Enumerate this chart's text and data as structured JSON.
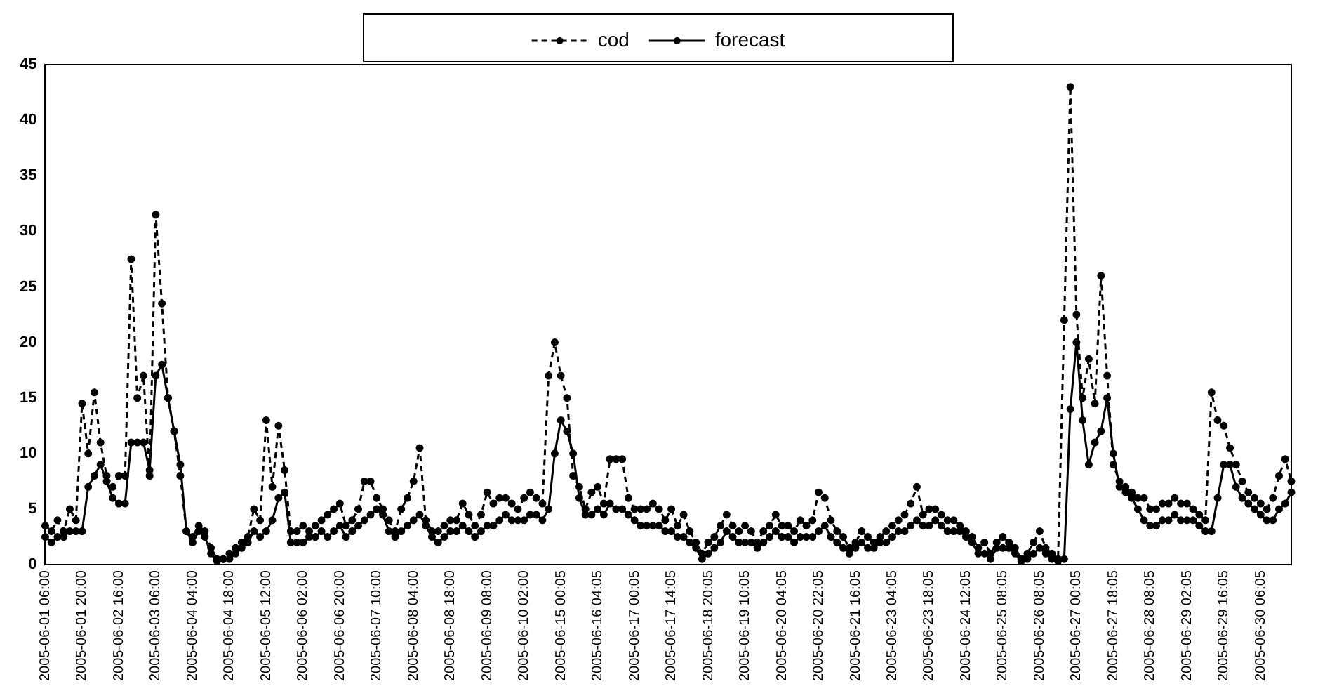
{
  "chart_data": {
    "type": "line",
    "marker": "circle",
    "legend": "top",
    "grid": false,
    "categories": [
      "2005-06-01 06:00",
      null,
      null,
      null,
      null,
      null,
      "2005-06-01 20:00",
      null,
      null,
      null,
      null,
      null,
      "2005-06-02 16:00",
      null,
      null,
      null,
      null,
      null,
      "2005-06-03 06:00",
      null,
      null,
      null,
      null,
      null,
      "2005-06-04 04:00",
      null,
      null,
      null,
      null,
      null,
      "2005-06-04 18:00",
      null,
      null,
      null,
      null,
      null,
      "2005-06-05 12:00",
      null,
      null,
      null,
      null,
      null,
      "2005-06-06 02:00",
      null,
      null,
      null,
      null,
      null,
      "2005-06-06 20:00",
      null,
      null,
      null,
      null,
      null,
      "2005-06-07 10:00",
      null,
      null,
      null,
      null,
      null,
      "2005-06-08 04:00",
      null,
      null,
      null,
      null,
      null,
      "2005-06-08 18:00",
      null,
      null,
      null,
      null,
      null,
      "2005-06-09 08:00",
      null,
      null,
      null,
      null,
      null,
      "2005-06-10 02:00",
      null,
      null,
      null,
      null,
      null,
      "2005-06-15 00:05",
      null,
      null,
      null,
      null,
      null,
      "2005-06-16 04:05",
      null,
      null,
      null,
      null,
      null,
      "2005-06-17 00:05",
      null,
      null,
      null,
      null,
      null,
      "2005-06-17 14:05",
      null,
      null,
      null,
      null,
      null,
      "2005-06-18 20:05",
      null,
      null,
      null,
      null,
      null,
      "2005-06-19 10:05",
      null,
      null,
      null,
      null,
      null,
      "2005-06-20 04:05",
      null,
      null,
      null,
      null,
      null,
      "2005-06-20 22:05",
      null,
      null,
      null,
      null,
      null,
      "2005-06-21 16:05",
      null,
      null,
      null,
      null,
      null,
      "2005-06-23 04:05",
      null,
      null,
      null,
      null,
      null,
      "2005-06-23 18:05",
      null,
      null,
      null,
      null,
      null,
      "2005-06-24 12:05",
      null,
      null,
      null,
      null,
      null,
      "2005-06-25 08:05",
      null,
      null,
      null,
      null,
      null,
      "2005-06-26 08:05",
      null,
      null,
      null,
      null,
      null,
      "2005-06-27 00:05",
      null,
      null,
      null,
      null,
      null,
      "2005-06-27 18:05",
      null,
      null,
      null,
      null,
      null,
      "2005-06-28 08:05",
      null,
      null,
      null,
      null,
      null,
      "2005-06-29 02:05",
      null,
      null,
      null,
      null,
      null,
      "2005-06-29 16:05",
      null,
      null,
      null,
      null,
      null,
      "2005-06-30 06:05",
      null,
      null,
      null,
      null,
      null
    ],
    "series": [
      {
        "name": "cod",
        "color": "#000000",
        "line_style": "dashed",
        "values": [
          3.5,
          3,
          4,
          3,
          5,
          4,
          14.5,
          10,
          15.5,
          11,
          8,
          7,
          8,
          8,
          27.5,
          15,
          17,
          8,
          31.5,
          23.5,
          15,
          12,
          8,
          3,
          2.5,
          3.5,
          3,
          1.5,
          0.5,
          0.5,
          1,
          1.5,
          2,
          2.5,
          5,
          4,
          13,
          7,
          12.5,
          8.5,
          3,
          3,
          3.5,
          3,
          3.5,
          4,
          4.5,
          5,
          5.5,
          3.5,
          4,
          5,
          7.5,
          7.5,
          6,
          5,
          4,
          3,
          5,
          6,
          7.5,
          10.5,
          4,
          3,
          3,
          3.5,
          4,
          4,
          5.5,
          4.5,
          3.5,
          4.5,
          6.5,
          5.5,
          6,
          6,
          5.5,
          5,
          6,
          6.5,
          6,
          5.5,
          17,
          20,
          17,
          15,
          8,
          7,
          5,
          6.5,
          7,
          5.5,
          9.5,
          9.5,
          9.5,
          6,
          5,
          5,
          5,
          5.5,
          5,
          4,
          5,
          3.5,
          4.5,
          3,
          2,
          1,
          2,
          2.5,
          3.5,
          4.5,
          3.5,
          3,
          3.5,
          3,
          2,
          3,
          3.5,
          4.5,
          3.5,
          3.5,
          3,
          4,
          3.5,
          4,
          6.5,
          6,
          4,
          3,
          2.5,
          1.5,
          2,
          3,
          2.5,
          2,
          2.5,
          3,
          3.5,
          4,
          4.5,
          5.5,
          7,
          4.5,
          5,
          5,
          4.5,
          4,
          4,
          3.5,
          3,
          2.5,
          1.5,
          2,
          1,
          2,
          2.5,
          2,
          1.5,
          0.5,
          1,
          2,
          3,
          1.5,
          1,
          0.5,
          22,
          43,
          22.5,
          15,
          18.5,
          14.5,
          26,
          17,
          9,
          7.5,
          7,
          6.5,
          6,
          6,
          5,
          5,
          5.5,
          5.5,
          6,
          5.5,
          5.5,
          5,
          4.5,
          4,
          15.5,
          13,
          12.5,
          10.5,
          9,
          7.5,
          6.5,
          6,
          5.5,
          5,
          6,
          8,
          9.5,
          7.5
        ]
      },
      {
        "name": "forecast",
        "color": "#000000",
        "line_style": "solid",
        "values": [
          2.5,
          2,
          2.5,
          2.5,
          3,
          3,
          3,
          7,
          8,
          9,
          7.5,
          6,
          5.5,
          5.5,
          11,
          11,
          11,
          8.5,
          17,
          18,
          15,
          12,
          9,
          3,
          2,
          3,
          2.5,
          1,
          0.3,
          0.5,
          0.5,
          1,
          1.5,
          2,
          3,
          2.5,
          3,
          4,
          6,
          6.5,
          2,
          2,
          2,
          2.5,
          2.5,
          3,
          2.5,
          3,
          3.5,
          2.5,
          3,
          3.5,
          4,
          4.5,
          5,
          4.5,
          3,
          2.5,
          3,
          3.5,
          4,
          4.5,
          3.5,
          2.5,
          2,
          2.5,
          3,
          3,
          3.5,
          3,
          2.5,
          3,
          3.5,
          3.5,
          4,
          4.5,
          4,
          4,
          4,
          4.5,
          4.5,
          4,
          5,
          10,
          13,
          12,
          10,
          6,
          4.5,
          4.5,
          5,
          4.5,
          5.5,
          5,
          5,
          4.5,
          4,
          3.5,
          3.5,
          3.5,
          3.5,
          3,
          3,
          2.5,
          2.5,
          2,
          1.5,
          0.5,
          1,
          1.5,
          2,
          3,
          2.5,
          2,
          2,
          2,
          1.5,
          2,
          2.5,
          3,
          2.5,
          2.5,
          2,
          2.5,
          2.5,
          2.5,
          3,
          3.5,
          2.5,
          2,
          1.5,
          1,
          1.5,
          2,
          1.5,
          1.5,
          2,
          2,
          2.5,
          3,
          3,
          3.5,
          4,
          3.5,
          3.5,
          4,
          3.5,
          3,
          3,
          3,
          2.5,
          2,
          1,
          1,
          0.5,
          1.5,
          1.5,
          1.5,
          1,
          0.3,
          0.5,
          1,
          1.5,
          1,
          0.5,
          0.3,
          0.5,
          14,
          20,
          13,
          9,
          11,
          12,
          15,
          10,
          7,
          6.5,
          6,
          5,
          4,
          3.5,
          3.5,
          4,
          4,
          4.5,
          4,
          4,
          4,
          3.5,
          3,
          3,
          6,
          9,
          9,
          7,
          6,
          5.5,
          5,
          4.5,
          4,
          4,
          5,
          5.5,
          6.5
        ]
      }
    ],
    "ylim": [
      0,
      45
    ],
    "yticks": [
      0,
      5,
      10,
      15,
      20,
      25,
      30,
      35,
      40,
      45
    ]
  }
}
